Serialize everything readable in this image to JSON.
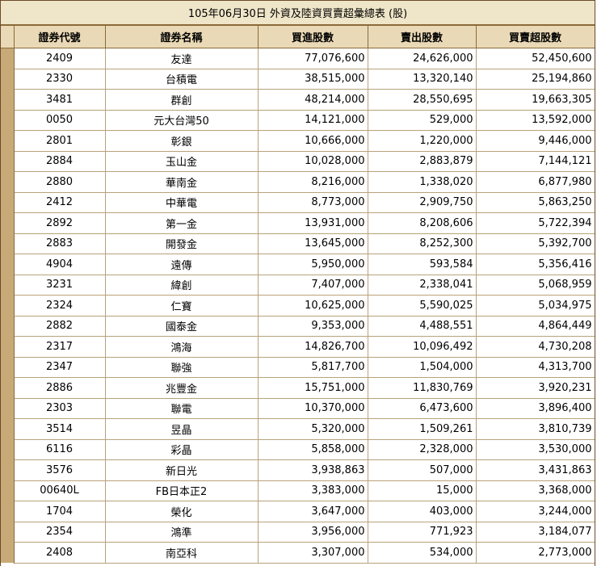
{
  "title": "105年06月30日 外資及陸資買賣超彙總表 (股)",
  "columns": {
    "code": "證券代號",
    "name": "證券名稱",
    "buy": "買進股數",
    "sell": "賣出股數",
    "net": "買賣超股數"
  },
  "rows": [
    {
      "code": "2409",
      "name": "友達",
      "buy": "77,076,600",
      "sell": "24,626,000",
      "net": "52,450,600"
    },
    {
      "code": "2330",
      "name": "台積電",
      "buy": "38,515,000",
      "sell": "13,320,140",
      "net": "25,194,860"
    },
    {
      "code": "3481",
      "name": "群創",
      "buy": "48,214,000",
      "sell": "28,550,695",
      "net": "19,663,305"
    },
    {
      "code": "0050",
      "name": "元大台灣50",
      "buy": "14,121,000",
      "sell": "529,000",
      "net": "13,592,000"
    },
    {
      "code": "2801",
      "name": "彰銀",
      "buy": "10,666,000",
      "sell": "1,220,000",
      "net": "9,446,000"
    },
    {
      "code": "2884",
      "name": "玉山金",
      "buy": "10,028,000",
      "sell": "2,883,879",
      "net": "7,144,121"
    },
    {
      "code": "2880",
      "name": "華南金",
      "buy": "8,216,000",
      "sell": "1,338,020",
      "net": "6,877,980"
    },
    {
      "code": "2412",
      "name": "中華電",
      "buy": "8,773,000",
      "sell": "2,909,750",
      "net": "5,863,250"
    },
    {
      "code": "2892",
      "name": "第一金",
      "buy": "13,931,000",
      "sell": "8,208,606",
      "net": "5,722,394"
    },
    {
      "code": "2883",
      "name": "開發金",
      "buy": "13,645,000",
      "sell": "8,252,300",
      "net": "5,392,700"
    },
    {
      "code": "4904",
      "name": "遠傳",
      "buy": "5,950,000",
      "sell": "593,584",
      "net": "5,356,416"
    },
    {
      "code": "3231",
      "name": "緯創",
      "buy": "7,407,000",
      "sell": "2,338,041",
      "net": "5,068,959"
    },
    {
      "code": "2324",
      "name": "仁寶",
      "buy": "10,625,000",
      "sell": "5,590,025",
      "net": "5,034,975"
    },
    {
      "code": "2882",
      "name": "國泰金",
      "buy": "9,353,000",
      "sell": "4,488,551",
      "net": "4,864,449"
    },
    {
      "code": "2317",
      "name": "鴻海",
      "buy": "14,826,700",
      "sell": "10,096,492",
      "net": "4,730,208"
    },
    {
      "code": "2347",
      "name": "聯強",
      "buy": "5,817,700",
      "sell": "1,504,000",
      "net": "4,313,700"
    },
    {
      "code": "2886",
      "name": "兆豐金",
      "buy": "15,751,000",
      "sell": "11,830,769",
      "net": "3,920,231"
    },
    {
      "code": "2303",
      "name": "聯電",
      "buy": "10,370,000",
      "sell": "6,473,600",
      "net": "3,896,400"
    },
    {
      "code": "3514",
      "name": "昱晶",
      "buy": "5,320,000",
      "sell": "1,509,261",
      "net": "3,810,739"
    },
    {
      "code": "6116",
      "name": "彩晶",
      "buy": "5,858,000",
      "sell": "2,328,000",
      "net": "3,530,000"
    },
    {
      "code": "3576",
      "name": "新日光",
      "buy": "3,938,863",
      "sell": "507,000",
      "net": "3,431,863"
    },
    {
      "code": "00640L",
      "name": "FB日本正2",
      "buy": "3,383,000",
      "sell": "15,000",
      "net": "3,368,000"
    },
    {
      "code": "1704",
      "name": "榮化",
      "buy": "3,647,000",
      "sell": "403,000",
      "net": "3,244,000"
    },
    {
      "code": "2354",
      "name": "鴻準",
      "buy": "3,956,000",
      "sell": "771,923",
      "net": "3,184,077"
    },
    {
      "code": "2408",
      "name": "南亞科",
      "buy": "3,307,000",
      "sell": "534,000",
      "net": "2,773,000"
    }
  ]
}
